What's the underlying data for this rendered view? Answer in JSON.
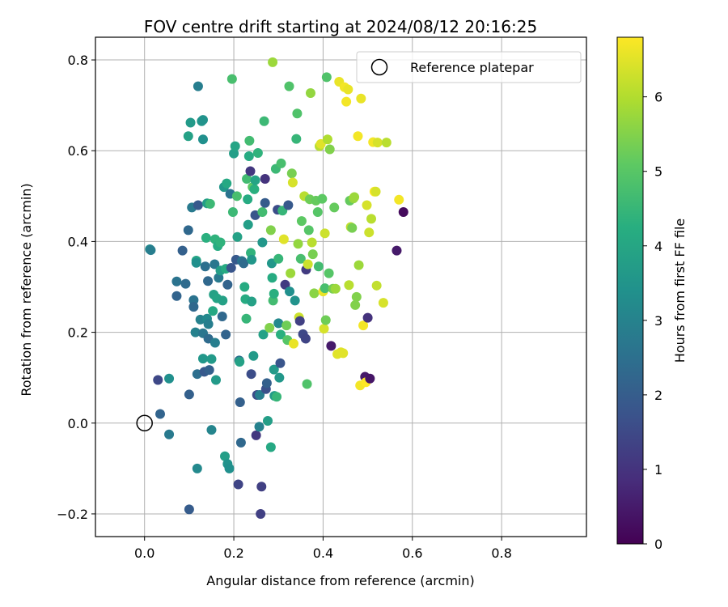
{
  "chart_data": {
    "type": "scatter",
    "title": "FOV centre drift starting at 2024/08/12 20:16:25",
    "xlabel": "Angular distance from reference (arcmin)",
    "ylabel": "Rotation from reference (arcmin)",
    "xlim": [
      -0.11,
      0.99
    ],
    "ylim": [
      -0.25,
      0.85
    ],
    "x_ticks": [
      0.0,
      0.2,
      0.4,
      0.6,
      0.8
    ],
    "y_ticks": [
      -0.2,
      0.0,
      0.2,
      0.4,
      0.6,
      0.8
    ],
    "x_tick_labels": [
      "0.0",
      "0.2",
      "0.4",
      "0.6",
      "0.8"
    ],
    "y_tick_labels": [
      "−0.2",
      "0.0",
      "0.2",
      "0.4",
      "0.6",
      "0.8"
    ],
    "grid": true,
    "legend": {
      "placement": "top-right",
      "entries": [
        "Reference platepar"
      ]
    },
    "reference_point": {
      "x": 0.0,
      "y": 0.0
    },
    "colorbar": {
      "label": "Hours from first FF file",
      "min": 0,
      "max": 6.8,
      "ticks": [
        0,
        1,
        2,
        3,
        4,
        5,
        6
      ],
      "tick_labels": [
        "0",
        "1",
        "2",
        "3",
        "4",
        "5",
        "6"
      ],
      "colormap": "viridis"
    },
    "points": [
      {
        "x": 0.03,
        "y": 0.095,
        "h": 1.5
      },
      {
        "x": 0.035,
        "y": 0.02,
        "h": 2.2
      },
      {
        "x": 0.055,
        "y": 0.098,
        "h": 3.4
      },
      {
        "x": 0.055,
        "y": -0.025,
        "h": 2.8
      },
      {
        "x": 0.012,
        "y": 0.383,
        "h": 3.2
      },
      {
        "x": 0.014,
        "y": 0.381,
        "h": 2.9
      },
      {
        "x": 0.072,
        "y": 0.312,
        "h": 2.6
      },
      {
        "x": 0.072,
        "y": 0.28,
        "h": 2.2
      },
      {
        "x": 0.085,
        "y": 0.38,
        "h": 2.1
      },
      {
        "x": 0.092,
        "y": 0.307,
        "h": 2.4
      },
      {
        "x": 0.1,
        "y": 0.063,
        "h": 2.1
      },
      {
        "x": 0.1,
        "y": -0.19,
        "h": 2.0
      },
      {
        "x": 0.098,
        "y": 0.425,
        "h": 2.3
      },
      {
        "x": 0.098,
        "y": 0.632,
        "h": 3.9
      },
      {
        "x": 0.103,
        "y": 0.662,
        "h": 3.7
      },
      {
        "x": 0.106,
        "y": 0.475,
        "h": 2.8
      },
      {
        "x": 0.11,
        "y": 0.271,
        "h": 2.6
      },
      {
        "x": 0.11,
        "y": 0.256,
        "h": 2.3
      },
      {
        "x": 0.114,
        "y": 0.2,
        "h": 3.0
      },
      {
        "x": 0.116,
        "y": 0.358,
        "h": 4.0
      },
      {
        "x": 0.116,
        "y": 0.353,
        "h": 3.4
      },
      {
        "x": 0.118,
        "y": 0.108,
        "h": 2.5
      },
      {
        "x": 0.118,
        "y": -0.1,
        "h": 3.2
      },
      {
        "x": 0.12,
        "y": 0.48,
        "h": 1.9
      },
      {
        "x": 0.12,
        "y": 0.742,
        "h": 2.9
      },
      {
        "x": 0.125,
        "y": 0.228,
        "h": 3.0
      },
      {
        "x": 0.128,
        "y": 0.665,
        "h": 3.6
      },
      {
        "x": 0.131,
        "y": 0.668,
        "h": 3.5
      },
      {
        "x": 0.131,
        "y": 0.625,
        "h": 3.4
      },
      {
        "x": 0.131,
        "y": 0.198,
        "h": 2.7
      },
      {
        "x": 0.131,
        "y": 0.142,
        "h": 3.6
      },
      {
        "x": 0.134,
        "y": 0.113,
        "h": 1.9
      },
      {
        "x": 0.136,
        "y": 0.345,
        "h": 2.5
      },
      {
        "x": 0.138,
        "y": 0.408,
        "h": 4.3
      },
      {
        "x": 0.14,
        "y": 0.484,
        "h": 3.8
      },
      {
        "x": 0.14,
        "y": 0.23,
        "h": 3.2
      },
      {
        "x": 0.142,
        "y": 0.313,
        "h": 2.3
      },
      {
        "x": 0.143,
        "y": 0.218,
        "h": 2.9
      },
      {
        "x": 0.143,
        "y": 0.186,
        "h": 2.4
      },
      {
        "x": 0.145,
        "y": 0.117,
        "h": 2.1
      },
      {
        "x": 0.147,
        "y": 0.483,
        "h": 4.6
      },
      {
        "x": 0.15,
        "y": 0.141,
        "h": 3.7
      },
      {
        "x": 0.15,
        "y": -0.015,
        "h": 3.1
      },
      {
        "x": 0.153,
        "y": 0.247,
        "h": 4.1
      },
      {
        "x": 0.155,
        "y": 0.283,
        "h": 3.9
      },
      {
        "x": 0.157,
        "y": 0.35,
        "h": 2.7
      },
      {
        "x": 0.158,
        "y": 0.405,
        "h": 4.4
      },
      {
        "x": 0.158,
        "y": 0.177,
        "h": 2.9
      },
      {
        "x": 0.16,
        "y": 0.095,
        "h": 3.7
      },
      {
        "x": 0.162,
        "y": 0.275,
        "h": 4.0
      },
      {
        "x": 0.164,
        "y": 0.39,
        "h": 4.2
      },
      {
        "x": 0.166,
        "y": 0.32,
        "h": 2.8
      },
      {
        "x": 0.17,
        "y": 0.398,
        "h": 4.4
      },
      {
        "x": 0.17,
        "y": 0.336,
        "h": 3.8
      },
      {
        "x": 0.174,
        "y": 0.235,
        "h": 2.3
      },
      {
        "x": 0.175,
        "y": 0.27,
        "h": 3.9
      },
      {
        "x": 0.178,
        "y": 0.52,
        "h": 3.6
      },
      {
        "x": 0.18,
        "y": -0.073,
        "h": 3.8
      },
      {
        "x": 0.182,
        "y": 0.34,
        "h": 4.2
      },
      {
        "x": 0.182,
        "y": 0.195,
        "h": 2.2
      },
      {
        "x": 0.184,
        "y": 0.528,
        "h": 4.1
      },
      {
        "x": 0.186,
        "y": 0.305,
        "h": 2.2
      },
      {
        "x": 0.186,
        "y": -0.09,
        "h": 3.5
      },
      {
        "x": 0.19,
        "y": -0.1,
        "h": 3.4
      },
      {
        "x": 0.192,
        "y": 0.505,
        "h": 2.6
      },
      {
        "x": 0.194,
        "y": 0.342,
        "h": 1.8
      },
      {
        "x": 0.196,
        "y": 0.758,
        "h": 4.8
      },
      {
        "x": 0.198,
        "y": 0.465,
        "h": 4.6
      },
      {
        "x": 0.2,
        "y": 0.594,
        "h": 3.8
      },
      {
        "x": 0.203,
        "y": 0.61,
        "h": 4.0
      },
      {
        "x": 0.205,
        "y": 0.36,
        "h": 1.9
      },
      {
        "x": 0.207,
        "y": 0.5,
        "h": 4.8
      },
      {
        "x": 0.208,
        "y": 0.41,
        "h": 3.9
      },
      {
        "x": 0.21,
        "y": -0.135,
        "h": 1.4
      },
      {
        "x": 0.212,
        "y": 0.138,
        "h": 2.6
      },
      {
        "x": 0.213,
        "y": 0.135,
        "h": 3.9
      },
      {
        "x": 0.214,
        "y": 0.046,
        "h": 2.1
      },
      {
        "x": 0.216,
        "y": -0.043,
        "h": 2.3
      },
      {
        "x": 0.218,
        "y": 0.357,
        "h": 2.6
      },
      {
        "x": 0.222,
        "y": 0.352,
        "h": 2.4
      },
      {
        "x": 0.224,
        "y": 0.3,
        "h": 4.2
      },
      {
        "x": 0.226,
        "y": 0.273,
        "h": 4.2
      },
      {
        "x": 0.228,
        "y": 0.23,
        "h": 4.5
      },
      {
        "x": 0.229,
        "y": 0.538,
        "h": 4.7
      },
      {
        "x": 0.231,
        "y": 0.493,
        "h": 4.2
      },
      {
        "x": 0.232,
        "y": 0.437,
        "h": 3.8
      },
      {
        "x": 0.234,
        "y": 0.588,
        "h": 4.2
      },
      {
        "x": 0.235,
        "y": 0.622,
        "h": 4.7
      },
      {
        "x": 0.237,
        "y": 0.555,
        "h": 1.1
      },
      {
        "x": 0.238,
        "y": 0.375,
        "h": 4.4
      },
      {
        "x": 0.239,
        "y": 0.108,
        "h": 1.6
      },
      {
        "x": 0.24,
        "y": 0.36,
        "h": 3.6
      },
      {
        "x": 0.24,
        "y": 0.268,
        "h": 3.9
      },
      {
        "x": 0.242,
        "y": 0.52,
        "h": 5.1
      },
      {
        "x": 0.244,
        "y": 0.148,
        "h": 3.7
      },
      {
        "x": 0.246,
        "y": 0.515,
        "h": 4.3
      },
      {
        "x": 0.248,
        "y": 0.458,
        "h": 1.8
      },
      {
        "x": 0.248,
        "y": 0.535,
        "h": 4.0
      },
      {
        "x": 0.25,
        "y": -0.027,
        "h": 1.1
      },
      {
        "x": 0.252,
        "y": 0.062,
        "h": 1.6
      },
      {
        "x": 0.254,
        "y": 0.595,
        "h": 4.4
      },
      {
        "x": 0.257,
        "y": -0.008,
        "h": 3.0
      },
      {
        "x": 0.258,
        "y": 0.062,
        "h": 2.9
      },
      {
        "x": 0.26,
        "y": -0.2,
        "h": 1.3
      },
      {
        "x": 0.262,
        "y": -0.14,
        "h": 1.3
      },
      {
        "x": 0.264,
        "y": 0.465,
        "h": 4.7
      },
      {
        "x": 0.264,
        "y": 0.398,
        "h": 3.6
      },
      {
        "x": 0.266,
        "y": 0.195,
        "h": 3.9
      },
      {
        "x": 0.268,
        "y": 0.665,
        "h": 4.6
      },
      {
        "x": 0.27,
        "y": 0.538,
        "h": 1.0
      },
      {
        "x": 0.27,
        "y": 0.485,
        "h": 2.0
      },
      {
        "x": 0.272,
        "y": 0.075,
        "h": 1.7
      },
      {
        "x": 0.274,
        "y": 0.088,
        "h": 2.1
      },
      {
        "x": 0.276,
        "y": 0.005,
        "h": 3.8
      },
      {
        "x": 0.28,
        "y": 0.21,
        "h": 5.5
      },
      {
        "x": 0.283,
        "y": 0.425,
        "h": 5.5
      },
      {
        "x": 0.283,
        "y": -0.053,
        "h": 4.1
      },
      {
        "x": 0.285,
        "y": 0.352,
        "h": 3.6
      },
      {
        "x": 0.286,
        "y": 0.32,
        "h": 4.2
      },
      {
        "x": 0.287,
        "y": 0.795,
        "h": 5.8
      },
      {
        "x": 0.288,
        "y": 0.27,
        "h": 4.7
      },
      {
        "x": 0.29,
        "y": 0.285,
        "h": 4.3
      },
      {
        "x": 0.29,
        "y": 0.118,
        "h": 3.7
      },
      {
        "x": 0.291,
        "y": 0.06,
        "h": 3.7
      },
      {
        "x": 0.294,
        "y": 0.56,
        "h": 4.6
      },
      {
        "x": 0.296,
        "y": 0.058,
        "h": 4.5
      },
      {
        "x": 0.298,
        "y": 0.47,
        "h": 1.6
      },
      {
        "x": 0.3,
        "y": 0.362,
        "h": 4.5
      },
      {
        "x": 0.3,
        "y": 0.22,
        "h": 3.2
      },
      {
        "x": 0.302,
        "y": 0.1,
        "h": 3.6
      },
      {
        "x": 0.304,
        "y": 0.132,
        "h": 1.8
      },
      {
        "x": 0.305,
        "y": 0.195,
        "h": 4.3
      },
      {
        "x": 0.306,
        "y": 0.572,
        "h": 4.8
      },
      {
        "x": 0.309,
        "y": 0.468,
        "h": 4.5
      },
      {
        "x": 0.312,
        "y": 0.405,
        "h": 6.5
      },
      {
        "x": 0.315,
        "y": 0.305,
        "h": 1.2
      },
      {
        "x": 0.318,
        "y": 0.215,
        "h": 5.3
      },
      {
        "x": 0.32,
        "y": 0.183,
        "h": 5.0
      },
      {
        "x": 0.322,
        "y": 0.48,
        "h": 1.9
      },
      {
        "x": 0.324,
        "y": 0.742,
        "h": 4.9
      },
      {
        "x": 0.325,
        "y": 0.29,
        "h": 3.4
      },
      {
        "x": 0.327,
        "y": 0.33,
        "h": 5.8
      },
      {
        "x": 0.33,
        "y": 0.55,
        "h": 5.4
      },
      {
        "x": 0.332,
        "y": 0.53,
        "h": 6.4
      },
      {
        "x": 0.334,
        "y": 0.175,
        "h": 6.6
      },
      {
        "x": 0.337,
        "y": 0.27,
        "h": 3.5
      },
      {
        "x": 0.34,
        "y": 0.626,
        "h": 4.5
      },
      {
        "x": 0.342,
        "y": 0.682,
        "h": 4.9
      },
      {
        "x": 0.344,
        "y": 0.395,
        "h": 5.7
      },
      {
        "x": 0.346,
        "y": 0.233,
        "h": 6.3
      },
      {
        "x": 0.348,
        "y": 0.225,
        "h": 1.3
      },
      {
        "x": 0.35,
        "y": 0.362,
        "h": 4.8
      },
      {
        "x": 0.352,
        "y": 0.445,
        "h": 5.1
      },
      {
        "x": 0.355,
        "y": 0.196,
        "h": 1.5
      },
      {
        "x": 0.358,
        "y": 0.5,
        "h": 6.1
      },
      {
        "x": 0.361,
        "y": 0.186,
        "h": 1.4
      },
      {
        "x": 0.362,
        "y": 0.338,
        "h": 1.2
      },
      {
        "x": 0.364,
        "y": 0.086,
        "h": 4.9
      },
      {
        "x": 0.366,
        "y": 0.35,
        "h": 6.3
      },
      {
        "x": 0.368,
        "y": 0.425,
        "h": 5.0
      },
      {
        "x": 0.37,
        "y": 0.493,
        "h": 5.3
      },
      {
        "x": 0.372,
        "y": 0.727,
        "h": 5.7
      },
      {
        "x": 0.375,
        "y": 0.398,
        "h": 6.1
      },
      {
        "x": 0.377,
        "y": 0.372,
        "h": 5.4
      },
      {
        "x": 0.38,
        "y": 0.286,
        "h": 5.6
      },
      {
        "x": 0.384,
        "y": 0.49,
        "h": 5.2
      },
      {
        "x": 0.388,
        "y": 0.465,
        "h": 5.0
      },
      {
        "x": 0.39,
        "y": 0.345,
        "h": 4.7
      },
      {
        "x": 0.392,
        "y": 0.61,
        "h": 6.1
      },
      {
        "x": 0.395,
        "y": 0.615,
        "h": 6.5
      },
      {
        "x": 0.398,
        "y": 0.494,
        "h": 5.1
      },
      {
        "x": 0.4,
        "y": 0.29,
        "h": 6.6
      },
      {
        "x": 0.402,
        "y": 0.208,
        "h": 6.4
      },
      {
        "x": 0.404,
        "y": 0.418,
        "h": 6.3
      },
      {
        "x": 0.404,
        "y": 0.297,
        "h": 4.8
      },
      {
        "x": 0.406,
        "y": 0.227,
        "h": 5.3
      },
      {
        "x": 0.408,
        "y": 0.762,
        "h": 4.9
      },
      {
        "x": 0.41,
        "y": 0.625,
        "h": 6.0
      },
      {
        "x": 0.413,
        "y": 0.33,
        "h": 5.0
      },
      {
        "x": 0.415,
        "y": 0.603,
        "h": 5.5
      },
      {
        "x": 0.418,
        "y": 0.17,
        "h": 0.5
      },
      {
        "x": 0.422,
        "y": 0.296,
        "h": 5.4
      },
      {
        "x": 0.425,
        "y": 0.475,
        "h": 5.2
      },
      {
        "x": 0.428,
        "y": 0.296,
        "h": 5.8
      },
      {
        "x": 0.432,
        "y": 0.152,
        "h": 6.5
      },
      {
        "x": 0.436,
        "y": 0.752,
        "h": 6.6
      },
      {
        "x": 0.44,
        "y": 0.156,
        "h": 6.5
      },
      {
        "x": 0.445,
        "y": 0.154,
        "h": 6.5
      },
      {
        "x": 0.448,
        "y": 0.74,
        "h": 6.7
      },
      {
        "x": 0.452,
        "y": 0.708,
        "h": 6.7
      },
      {
        "x": 0.456,
        "y": 0.735,
        "h": 6.6
      },
      {
        "x": 0.458,
        "y": 0.304,
        "h": 6.1
      },
      {
        "x": 0.46,
        "y": 0.49,
        "h": 5.2
      },
      {
        "x": 0.462,
        "y": 0.432,
        "h": 6.2
      },
      {
        "x": 0.465,
        "y": 0.43,
        "h": 5.4
      },
      {
        "x": 0.468,
        "y": 0.495,
        "h": 5.7
      },
      {
        "x": 0.47,
        "y": 0.498,
        "h": 5.8
      },
      {
        "x": 0.472,
        "y": 0.26,
        "h": 5.5
      },
      {
        "x": 0.475,
        "y": 0.278,
        "h": 5.5
      },
      {
        "x": 0.478,
        "y": 0.632,
        "h": 6.7
      },
      {
        "x": 0.48,
        "y": 0.348,
        "h": 5.8
      },
      {
        "x": 0.483,
        "y": 0.083,
        "h": 6.7
      },
      {
        "x": 0.485,
        "y": 0.715,
        "h": 6.6
      },
      {
        "x": 0.49,
        "y": 0.215,
        "h": 6.7
      },
      {
        "x": 0.494,
        "y": 0.102,
        "h": 0.5
      },
      {
        "x": 0.496,
        "y": 0.09,
        "h": 6.8
      },
      {
        "x": 0.498,
        "y": 0.48,
        "h": 6.4
      },
      {
        "x": 0.5,
        "y": 0.232,
        "h": 1.0
      },
      {
        "x": 0.503,
        "y": 0.42,
        "h": 6.3
      },
      {
        "x": 0.505,
        "y": 0.098,
        "h": 0.4
      },
      {
        "x": 0.508,
        "y": 0.45,
        "h": 6.1
      },
      {
        "x": 0.512,
        "y": 0.619,
        "h": 6.7
      },
      {
        "x": 0.515,
        "y": 0.51,
        "h": 6.8
      },
      {
        "x": 0.518,
        "y": 0.51,
        "h": 6.4
      },
      {
        "x": 0.52,
        "y": 0.303,
        "h": 6.2
      },
      {
        "x": 0.522,
        "y": 0.618,
        "h": 6.4
      },
      {
        "x": 0.535,
        "y": 0.265,
        "h": 6.4
      },
      {
        "x": 0.542,
        "y": 0.618,
        "h": 6.1
      },
      {
        "x": 0.565,
        "y": 0.38,
        "h": 0.5
      },
      {
        "x": 0.57,
        "y": 0.492,
        "h": 6.7
      },
      {
        "x": 0.58,
        "y": 0.465,
        "h": 0.2
      }
    ]
  }
}
